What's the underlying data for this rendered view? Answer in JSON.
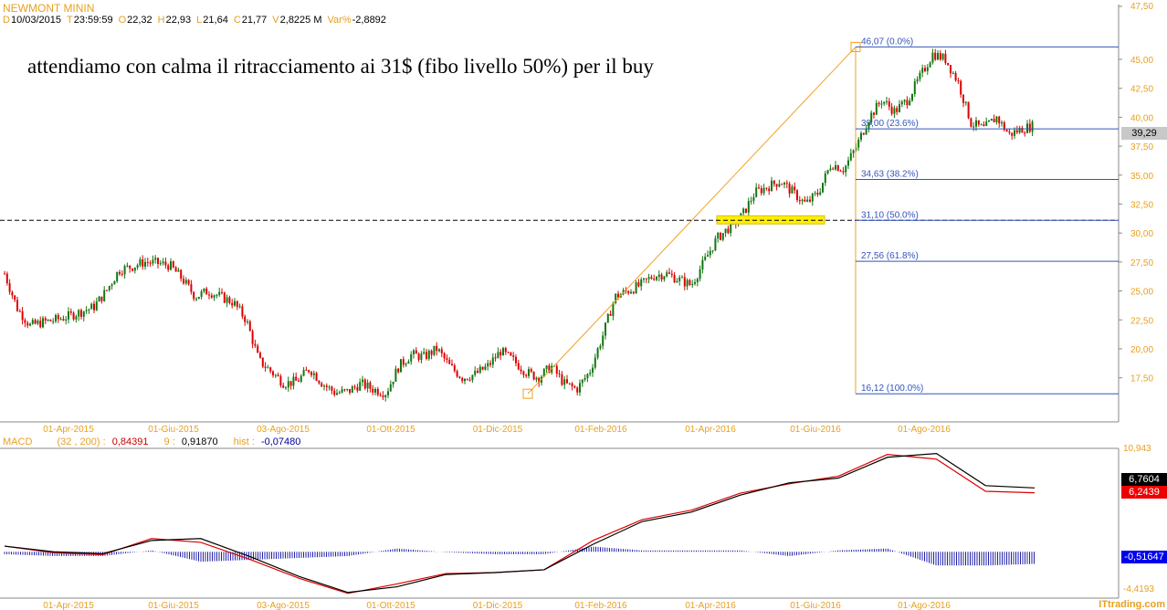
{
  "header": {
    "symbol": "NEWMONT MININ",
    "fields": [
      {
        "k": "D",
        "v": "10/03/2015"
      },
      {
        "k": "T",
        "v": "23:59:59"
      },
      {
        "k": "O",
        "v": "22,32"
      },
      {
        "k": "H",
        "v": "22,93"
      },
      {
        "k": "L",
        "v": "21,64"
      },
      {
        "k": "C",
        "v": "21,77"
      },
      {
        "k": "V",
        "v": "2,8225 M"
      },
      {
        "k": "Var%",
        "v": "-2,8892"
      }
    ]
  },
  "annotation": "attendiamo con calma il ritracciamento ai 31$ (fibo livello 50%) per il buy",
  "macd_header": {
    "label": "MACD",
    "params": "(32 , 200) :",
    "macd": "0,84391",
    "sig_label": "9 :",
    "signal": "0,91870",
    "hist_label": "hist :",
    "hist": "-0,07480"
  },
  "last_price": "39,29",
  "macd_last": {
    "signal": "6,7604",
    "macd": "6,2439",
    "hist": "-0,51647"
  },
  "macd_axis": {
    "max": "10,943",
    "min": "-4,4193"
  },
  "logo": "ITtrading.com",
  "colors": {
    "up": "#117711",
    "down": "#dd0000",
    "fibo": "#3355bb",
    "trend": "#f0a020",
    "macd": "#dd0000",
    "signal": "#000000",
    "hist": "#2222aa",
    "axis_text": "#e8a020"
  },
  "chart_data": [
    {
      "type": "candlestick",
      "title": "NEWMONT MININ",
      "x_labels": [
        "01-Apr-2015",
        "01-Giu-2015",
        "03-Ago-2015",
        "01-Ott-2015",
        "01-Dic-2015",
        "01-Feb-2016",
        "01-Apr-2016",
        "01-Giu-2016",
        "01-Ago-2016"
      ],
      "y_ticks": [
        "47,50",
        "45,00",
        "42,50",
        "40,00",
        "37,50",
        "35,00",
        "32,50",
        "30,00",
        "27,50",
        "25,00",
        "22,50",
        "20,00",
        "17,50"
      ],
      "ylim": [
        15,
        47.5
      ],
      "weekly_close": [
        26.5,
        23.5,
        22,
        22.3,
        22.5,
        22.8,
        23.2,
        23.6,
        25,
        26.8,
        27.1,
        27.5,
        27.4,
        27.2,
        26,
        24.5,
        25,
        24.5,
        24,
        22.5,
        19,
        18,
        17,
        17.2,
        18.3,
        17,
        16.2,
        16.3,
        17,
        16.5,
        16.2,
        18.5,
        19.5,
        19.3,
        20,
        18.5,
        17.5,
        17.8,
        18.5,
        19.8,
        19,
        18,
        17.5,
        18.5,
        17,
        16.5,
        18,
        21,
        24.5,
        25,
        25.5,
        26.3,
        26.5,
        26,
        25.5,
        27.5,
        29.5,
        30.5,
        31.5,
        33.5,
        34,
        34.5,
        33.5,
        32.5,
        33.5,
        36,
        35.5,
        37.5,
        40,
        41.5,
        40.5,
        41.5,
        43.5,
        45.5,
        45,
        43,
        39.5,
        39,
        40,
        38.5,
        39,
        39.29
      ],
      "fibonacci": {
        "low": 16.12,
        "high": 46.07,
        "levels": [
          {
            "value": 46.07,
            "label": "46,07 (0.0%)"
          },
          {
            "value": 39.0,
            "label": "39,00 (23.6%)"
          },
          {
            "value": 34.63,
            "label": "34,63 (38.2%)"
          },
          {
            "value": 31.1,
            "label": "31,10 (50.0%)"
          },
          {
            "value": 27.56,
            "label": "27,56 (61.8%)"
          },
          {
            "value": 16.12,
            "label": "16,12 (100.0%)"
          }
        ]
      },
      "horizontal_line": 31.1,
      "grid": false
    },
    {
      "type": "line",
      "title": "MACD",
      "ylim": [
        -4.4193,
        10.943
      ],
      "series": [
        {
          "name": "MACD",
          "values": [
            0.6,
            -0.1,
            -0.3,
            1.4,
            1.0,
            -0.8,
            -2.8,
            -4.4,
            -3.4,
            -2.3,
            -2.2,
            -1.9,
            1.2,
            3.4,
            4.4,
            6.2,
            7.2,
            8.0,
            10.3,
            9.8,
            6.4,
            6.2439
          ]
        },
        {
          "name": "9",
          "values": [
            0.6,
            0.0,
            -0.2,
            1.2,
            1.4,
            -0.5,
            -2.6,
            -4.3,
            -3.7,
            -2.4,
            -2.2,
            -1.9,
            0.8,
            3.2,
            4.2,
            6.0,
            7.3,
            7.8,
            10.0,
            10.4,
            7.0,
            6.7604
          ]
        }
      ]
    }
  ]
}
